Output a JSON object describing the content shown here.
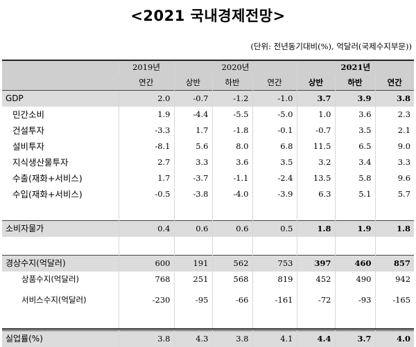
{
  "title": "<2021 국내경제전망>",
  "unit_note": "(단위: 전년동기대비(%), 억달러(국제수지부문))",
  "header": {
    "row1": {
      "y2019": "2019년",
      "y2020": "2020년",
      "y2021": "2021년"
    },
    "row2": {
      "c2019": "연간",
      "h1_2020": "상반",
      "h2_2020": "하반",
      "y_2020": "연간",
      "h1_2021": "상반",
      "h2_2021": "하반",
      "y_2021": "연간"
    }
  },
  "rows": [
    {
      "label": "GDP",
      "values": [
        "2.0",
        "-0.7",
        "-1.2",
        "-1.0",
        "3.7",
        "3.9",
        "3.8"
      ]
    },
    {
      "label": "민간소비",
      "values": [
        "1.9",
        "-4.4",
        "-5.5",
        "-5.0",
        "1.0",
        "3.6",
        "2.3"
      ]
    },
    {
      "label": "건설투자",
      "values": [
        "-3.3",
        "1.7",
        "-1.8",
        "-0.1",
        "-0.7",
        "3.5",
        "2.1"
      ]
    },
    {
      "label": "설비투자",
      "values": [
        "-8.1",
        "5.6",
        "8.0",
        "6.8",
        "11.5",
        "6.5",
        "9.0"
      ]
    },
    {
      "label": "지식생산물투자",
      "values": [
        "2.7",
        "3.3",
        "3.6",
        "3.5",
        "3.2",
        "3.4",
        "3.3"
      ]
    },
    {
      "label": "수출(재화+서비스)",
      "values": [
        "1.7",
        "-3.7",
        "-1.1",
        "-2.4",
        "13.5",
        "5.8",
        "9.6"
      ]
    },
    {
      "label": "수입(재화+서비스)",
      "values": [
        "-0.5",
        "-3.8",
        "-4.0",
        "-3.9",
        "6.3",
        "5.1",
        "5.7"
      ]
    },
    {
      "label": "소비자물가",
      "values": [
        "0.4",
        "0.6",
        "0.6",
        "0.5",
        "1.8",
        "1.9",
        "1.8"
      ]
    },
    {
      "label": "경상수지(억달러)",
      "values": [
        "600",
        "191",
        "562",
        "753",
        "397",
        "460",
        "857"
      ]
    },
    {
      "label": "상품수지(억달러)",
      "values": [
        "768",
        "251",
        "568",
        "819",
        "452",
        "490",
        "942"
      ]
    },
    {
      "label": "서비스수지(억달러)",
      "values": [
        "-230",
        "-95",
        "-66",
        "-161",
        "-72",
        "-93",
        "-165"
      ]
    },
    {
      "label": "실업률(%)",
      "values": [
        "3.8",
        "4.3",
        "3.8",
        "4.1",
        "4.4",
        "3.7",
        "4.0"
      ]
    }
  ]
}
